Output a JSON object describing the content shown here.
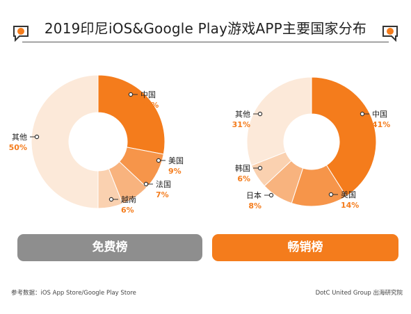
{
  "title": "2019印尼iOS&Google Play游戏APP主要国家分布",
  "tabs": {
    "free": "免费榜",
    "grossing": "畅销榜"
  },
  "footer": {
    "source": "参考数据：iOS App Store/Google Play Store",
    "credit": "DotC United Group 出海研究院"
  },
  "colors": {
    "accent": "#f47c1c",
    "label_percent": "#f47c1c",
    "tab_gray": "#8e8e8e"
  },
  "chart_data": [
    {
      "type": "pie",
      "style": "donut",
      "categories": [
        "中国",
        "美国",
        "法国",
        "越南",
        "其他"
      ],
      "values": [
        28,
        9,
        7,
        6,
        50
      ],
      "percent_labels": [
        "28%",
        "9%",
        "7%",
        "6%",
        "50%"
      ],
      "colors": [
        "#f47c1c",
        "#f6954a",
        "#f8b37e",
        "#fad1b0",
        "#fce9d9"
      ]
    },
    {
      "type": "pie",
      "style": "donut",
      "categories": [
        "中国",
        "美国",
        "日本",
        "韩国",
        "其他"
      ],
      "values": [
        41,
        14,
        8,
        6,
        31
      ],
      "percent_labels": [
        "41%",
        "14%",
        "8%",
        "6%",
        "31%"
      ],
      "colors": [
        "#f47c1c",
        "#f6954a",
        "#f8b37e",
        "#fad1b0",
        "#fce9d9"
      ]
    }
  ]
}
